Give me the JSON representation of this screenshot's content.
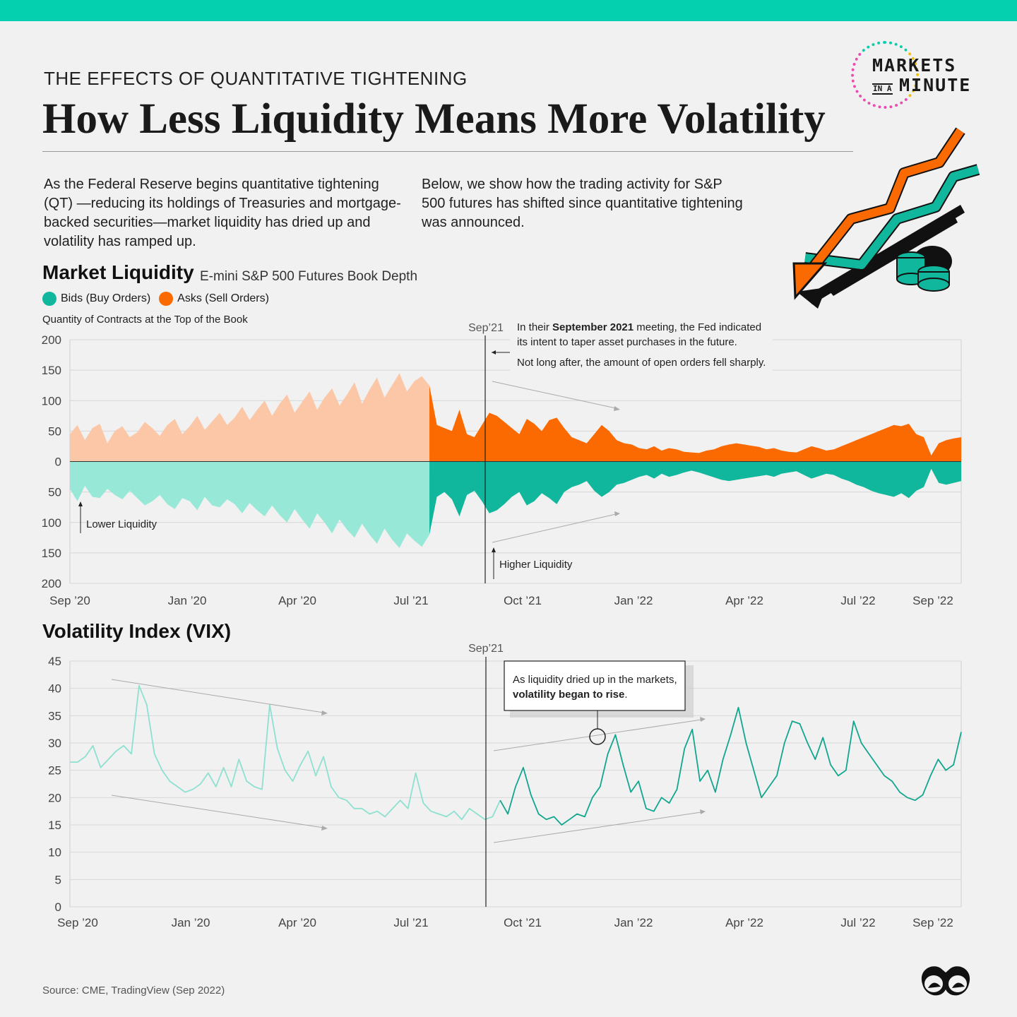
{
  "header": {
    "kicker": "THE EFFECTS OF QUANTITATIVE TIGHTENING",
    "title": "How Less Liquidity Means More Volatility",
    "intro_left": "As the Federal Reserve begins quantitative tightening (QT) —reducing its holdings of Treasuries and mortgage-backed securities—market liquidity has dried up and volatility has ramped up.",
    "intro_right": "Below, we show how the trading activity for S&P 500 futures has shifted since quantitative tightening was announced."
  },
  "brand": {
    "line1": "MARKETS",
    "small": "IN A",
    "line2": "MINUTE"
  },
  "colors": {
    "accent_bar": "#04cfae",
    "bids_before": "#98e8d8",
    "bids_after": "#10b79c",
    "asks_before": "#fcc7a7",
    "asks_after": "#fb6a00",
    "vix_before": "#8ee0d0",
    "vix_after": "#12a68e"
  },
  "liquidity": {
    "title": "Market Liquidity",
    "subtitle": "E-mini S&P 500 Futures Book Depth",
    "legend_bids": "Bids (Buy Orders)",
    "legend_asks": "Asks (Sell Orders)",
    "y_caption": "Quantity of Contracts at the Top of the Book",
    "marker_label": "Sep’21",
    "note_line1_pre": "In their ",
    "note_line1_bold": "September 2021",
    "note_line1_post": " meeting, the Fed indicated",
    "note_line2": "its intent to taper asset purchases in the future.",
    "note_line3": "Not long after, the amount of open orders fell sharply.",
    "label_lower": "Lower Liquidity",
    "label_higher": "Higher Liquidity"
  },
  "vix": {
    "title": "Volatility Index (VIX)",
    "marker_label": "Sep’21",
    "note_line1": "As liquidity dried up in the markets,",
    "note_line2_bold": "volatility began to rise",
    "note_line2_post": "."
  },
  "source": "Source: CME, TradingView (Sep 2022)",
  "chart_data": [
    {
      "type": "area",
      "title": "Market Liquidity",
      "subtitle": "E-mini S&P 500 Futures Book Depth",
      "ylabel": "Quantity of Contracts at the Top of the Book",
      "ylim": [
        -200,
        200
      ],
      "y_ticks": [
        200,
        150,
        100,
        50,
        0,
        50,
        100,
        150,
        200
      ],
      "x_ticks": [
        "Sep '20",
        "Jan '20",
        "Apr '20",
        "Jul '21",
        "Oct '21",
        "Jan '22",
        "Apr '22",
        "Jul '22",
        "Sep '22"
      ],
      "grid": true,
      "split_index": 48,
      "series": [
        {
          "name": "Asks (Sell Orders)",
          "values": [
            45,
            60,
            35,
            55,
            62,
            30,
            50,
            58,
            40,
            48,
            65,
            55,
            42,
            60,
            70,
            45,
            58,
            75,
            52,
            66,
            80,
            60,
            72,
            90,
            68,
            85,
            100,
            75,
            95,
            110,
            80,
            98,
            115,
            85,
            105,
            120,
            92,
            110,
            130,
            95,
            118,
            138,
            105,
            125,
            145,
            115,
            132,
            140,
            125,
            60,
            55,
            50,
            85,
            45,
            40,
            60,
            80,
            75,
            65,
            55,
            45,
            70,
            62,
            50,
            68,
            72,
            55,
            40,
            35,
            30,
            45,
            60,
            50,
            35,
            30,
            28,
            22,
            20,
            25,
            18,
            22,
            20,
            16,
            15,
            14,
            18,
            20,
            25,
            28,
            30,
            28,
            26,
            24,
            20,
            22,
            18,
            16,
            15,
            20,
            25,
            22,
            18,
            20,
            25,
            30,
            35,
            40,
            45,
            50,
            55,
            60,
            58,
            62,
            45,
            40,
            10,
            30,
            35,
            38,
            40
          ]
        },
        {
          "name": "Bids (Buy Orders)",
          "values": [
            45,
            65,
            40,
            58,
            60,
            45,
            55,
            62,
            48,
            60,
            72,
            65,
            55,
            70,
            78,
            60,
            65,
            80,
            58,
            72,
            75,
            62,
            70,
            85,
            68,
            80,
            90,
            72,
            88,
            100,
            78,
            95,
            110,
            85,
            100,
            118,
            95,
            112,
            125,
            102,
            120,
            135,
            110,
            128,
            142,
            118,
            130,
            140,
            120,
            58,
            50,
            62,
            90,
            55,
            48,
            65,
            85,
            80,
            70,
            58,
            50,
            72,
            65,
            52,
            60,
            70,
            50,
            42,
            38,
            32,
            48,
            58,
            50,
            38,
            35,
            30,
            25,
            22,
            28,
            20,
            25,
            22,
            18,
            15,
            18,
            22,
            26,
            30,
            32,
            30,
            28,
            26,
            24,
            22,
            25,
            20,
            18,
            16,
            22,
            28,
            24,
            20,
            22,
            28,
            32,
            38,
            42,
            48,
            52,
            55,
            58,
            52,
            60,
            48,
            42,
            12,
            35,
            38,
            35,
            32
          ]
        }
      ],
      "annotations": [
        "In their September 2021 meeting, the Fed indicated its intent to taper asset purchases in the future.",
        "Not long after, the amount of open orders fell sharply.",
        "Lower Liquidity",
        "Higher Liquidity",
        "Sep’21"
      ]
    },
    {
      "type": "line",
      "title": "Volatility Index (VIX)",
      "ylim": [
        0,
        45
      ],
      "y_ticks": [
        45,
        40,
        35,
        30,
        25,
        20,
        15,
        10,
        5,
        0
      ],
      "x_ticks": [
        "Sep '20",
        "Jan '20",
        "Apr '20",
        "Jul '21",
        "Oct '21",
        "Jan '22",
        "Apr '22",
        "Jul '22",
        "Sep '22"
      ],
      "grid": true,
      "split_index": 56,
      "series": [
        {
          "name": "VIX",
          "values": [
            26.5,
            26.5,
            27.5,
            29.5,
            25.5,
            27,
            28.5,
            29.5,
            28,
            40.5,
            37,
            28,
            25,
            23,
            22,
            21,
            21.5,
            22.5,
            24.5,
            22,
            25.5,
            22,
            27,
            23,
            22,
            21.5,
            37,
            29,
            25,
            23,
            26,
            28.5,
            24,
            27.5,
            22,
            20,
            19.5,
            18,
            18,
            17,
            17.5,
            16.5,
            18,
            19.5,
            18,
            24.5,
            19,
            17.5,
            17,
            16.5,
            17.5,
            16,
            18,
            17,
            16,
            16.5,
            19.5,
            17,
            22,
            25.5,
            20.5,
            17,
            16,
            16.5,
            15,
            16,
            17,
            16.5,
            20,
            22,
            28,
            31.5,
            26,
            21,
            23,
            18,
            17.5,
            20,
            19,
            21.5,
            29,
            32.5,
            23,
            25,
            21,
            27,
            31.5,
            36.5,
            30,
            25,
            20,
            22,
            24,
            30,
            34,
            33.5,
            30,
            27,
            31,
            26,
            24,
            25,
            34,
            30,
            28,
            26,
            24,
            23,
            21,
            20,
            19.5,
            20.5,
            24,
            27,
            25,
            26,
            32
          ]
        }
      ],
      "annotations": [
        "As liquidity dried up in the markets, volatility began to rise.",
        "Sep’21"
      ]
    }
  ]
}
